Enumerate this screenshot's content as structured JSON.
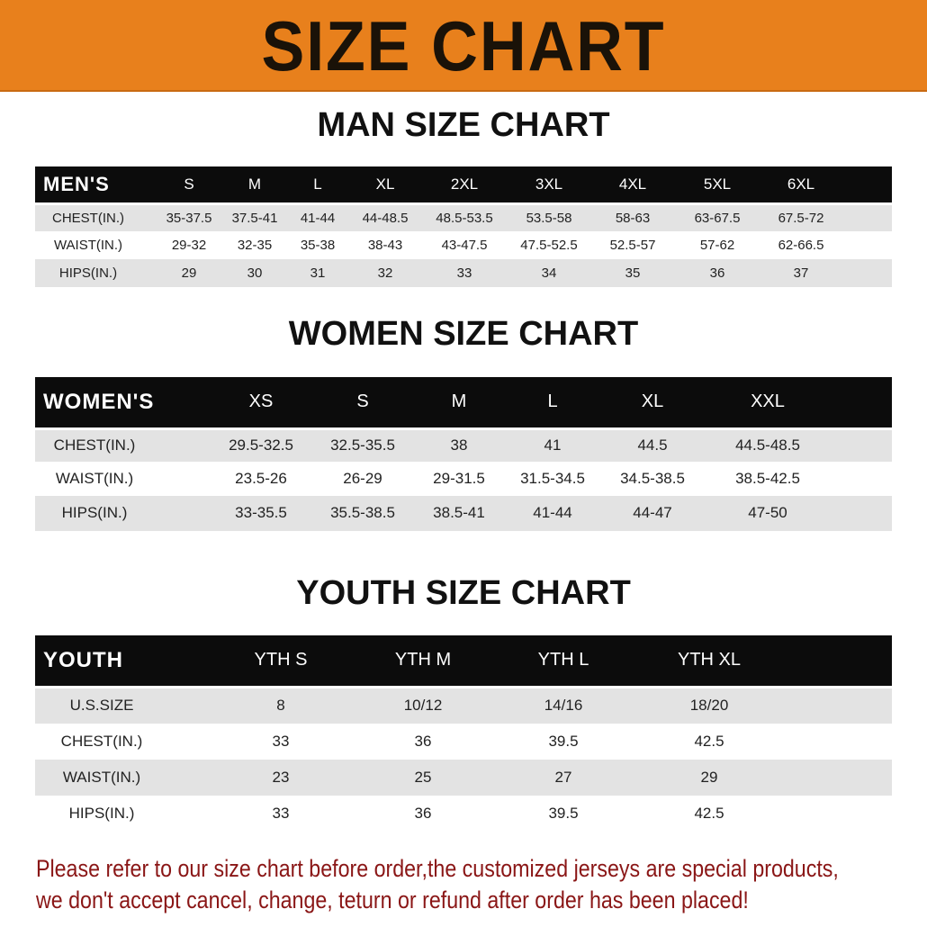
{
  "title": "SIZE CHART",
  "men": {
    "title": "MAN SIZE CHART",
    "header_label": "MEN'S",
    "sizes": [
      "S",
      "M",
      "L",
      "XL",
      "2XL",
      "3XL",
      "4XL",
      "5XL",
      "6XL"
    ],
    "rows": [
      {
        "label": "CHEST(IN.)",
        "values": [
          "35-37.5",
          "37.5-41",
          "41-44",
          "44-48.5",
          "48.5-53.5",
          "53.5-58",
          "58-63",
          "63-67.5",
          "67.5-72"
        ]
      },
      {
        "label": "WAIST(IN.)",
        "values": [
          "29-32",
          "32-35",
          "35-38",
          "38-43",
          "43-47.5",
          "47.5-52.5",
          "52.5-57",
          "57-62",
          "62-66.5"
        ]
      },
      {
        "label": "HIPS(IN.)",
        "values": [
          "29",
          "30",
          "31",
          "32",
          "33",
          "34",
          "35",
          "36",
          "37"
        ]
      }
    ]
  },
  "women": {
    "title": "WOMEN SIZE CHART",
    "header_label": "WOMEN'S",
    "sizes": [
      "XS",
      "S",
      "M",
      "L",
      "XL",
      "XXL"
    ],
    "rows": [
      {
        "label": "CHEST(IN.)",
        "values": [
          "29.5-32.5",
          "32.5-35.5",
          "38",
          "41",
          "44.5",
          "44.5-48.5"
        ]
      },
      {
        "label": "WAIST(IN.)",
        "values": [
          "23.5-26",
          "26-29",
          "29-31.5",
          "31.5-34.5",
          "34.5-38.5",
          "38.5-42.5"
        ]
      },
      {
        "label": "HIPS(IN.)",
        "values": [
          "33-35.5",
          "35.5-38.5",
          "38.5-41",
          "41-44",
          "44-47",
          "47-50"
        ]
      }
    ]
  },
  "youth": {
    "title": "YOUTH SIZE CHART",
    "header_label": "YOUTH",
    "sizes": [
      "YTH S",
      "YTH M",
      "YTH L",
      "YTH XL"
    ],
    "rows": [
      {
        "label": "U.S.SIZE",
        "values": [
          "8",
          "10/12",
          "14/16",
          "18/20"
        ]
      },
      {
        "label": "CHEST(IN.)",
        "values": [
          "33",
          "36",
          "39.5",
          "42.5"
        ]
      },
      {
        "label": "WAIST(IN.)",
        "values": [
          "23",
          "25",
          "27",
          "29"
        ]
      },
      {
        "label": "HIPS(IN.)",
        "values": [
          "33",
          "36",
          "39.5",
          "42.5"
        ]
      }
    ]
  },
  "footer": {
    "line1": "Please refer to our size chart before order,the customized jerseys are special products,",
    "line2": "we don't accept cancel, change, teturn or refund after order has been placed!"
  },
  "colors": {
    "banner": "#e8801c",
    "header": "#0c0c0c",
    "stripe": "#e3e3e3",
    "footer_text": "#8a1616"
  }
}
